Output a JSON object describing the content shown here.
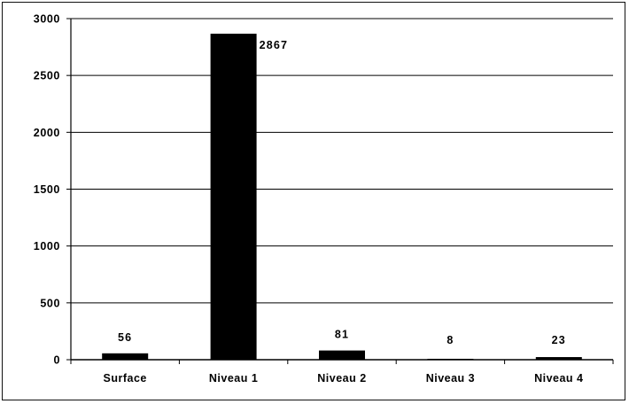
{
  "chart_data": {
    "type": "bar",
    "categories": [
      "Surface",
      "Niveau 1",
      "Niveau 2",
      "Niveau 3",
      "Niveau 4"
    ],
    "values": [
      56,
      2867,
      81,
      8,
      23
    ],
    "data_labels": [
      "56",
      "2867",
      "81",
      "8",
      "23"
    ],
    "title": "",
    "xlabel": "",
    "ylabel": "",
    "ylim": [
      0,
      3000
    ],
    "yticks": [
      0,
      500,
      1000,
      1500,
      2000,
      2500,
      3000
    ],
    "ytick_labels": [
      "0",
      "500",
      "1000",
      "1500",
      "2000",
      "2500",
      "3000"
    ],
    "grid": true,
    "legend": "none",
    "colors": {
      "bar": "#000000",
      "grid": "#000000",
      "background": "#ffffff"
    }
  }
}
